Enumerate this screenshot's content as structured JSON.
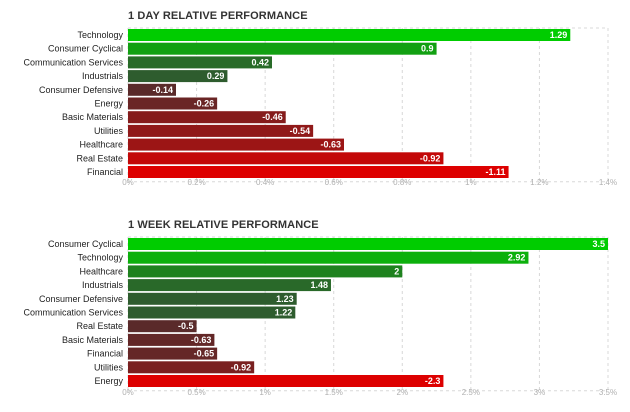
{
  "chart_data": [
    {
      "type": "bar",
      "orientation": "horizontal",
      "title": "1 DAY RELATIVE PERFORMANCE",
      "categories": [
        "Technology",
        "Consumer Cyclical",
        "Communication Services",
        "Industrials",
        "Consumer Defensive",
        "Energy",
        "Basic Materials",
        "Utilities",
        "Healthcare",
        "Real Estate",
        "Financial"
      ],
      "values": [
        1.29,
        0.9,
        0.42,
        0.29,
        -0.14,
        -0.26,
        -0.46,
        -0.54,
        -0.63,
        -0.92,
        -1.11
      ],
      "value_labels": [
        "1.29",
        "0.9",
        "0.42",
        "0.29",
        "-0.14",
        "-0.26",
        "-0.46",
        "-0.54",
        "-0.63",
        "-0.92",
        "-1.11"
      ],
      "xlim": [
        0,
        1.4
      ],
      "ticks": [
        0,
        0.2,
        0.4,
        0.6,
        0.8,
        1,
        1.2,
        1.4
      ],
      "tick_labels": [
        "0%",
        "0.2%",
        "0.4%",
        "0.6%",
        "0.8%",
        "1%",
        "1.2%",
        "1.4%"
      ],
      "bar_length": "absolute value",
      "colors": {
        "positive_max": "#00cc00",
        "positive_min": "#2e5c2e",
        "negative_min": "#5a2a2a",
        "negative_max": "#dd0000"
      },
      "grid": true
    },
    {
      "type": "bar",
      "orientation": "horizontal",
      "title": "1 WEEK RELATIVE PERFORMANCE",
      "categories": [
        "Consumer Cyclical",
        "Technology",
        "Healthcare",
        "Industrials",
        "Consumer Defensive",
        "Communication Services",
        "Real Estate",
        "Basic Materials",
        "Financial",
        "Utilities",
        "Energy"
      ],
      "values": [
        3.5,
        2.92,
        2,
        1.48,
        1.23,
        1.22,
        -0.5,
        -0.63,
        -0.65,
        -0.92,
        -2.3
      ],
      "value_labels": [
        "3.5",
        "2.92",
        "2",
        "1.48",
        "1.23",
        "1.22",
        "-0.5",
        "-0.63",
        "-0.65",
        "-0.92",
        "-2.3"
      ],
      "xlim": [
        0,
        3.5
      ],
      "ticks": [
        0,
        0.5,
        1,
        1.5,
        2,
        2.5,
        3,
        3.5
      ],
      "tick_labels": [
        "0%",
        "0.5%",
        "1%",
        "1.5%",
        "2%",
        "2.5%",
        "3%",
        "3.5%"
      ],
      "bar_length": "absolute value",
      "colors": {
        "positive_max": "#00cc00",
        "positive_min": "#2e5c2e",
        "negative_min": "#5a2a2a",
        "negative_max": "#dd0000"
      },
      "grid": true
    }
  ]
}
